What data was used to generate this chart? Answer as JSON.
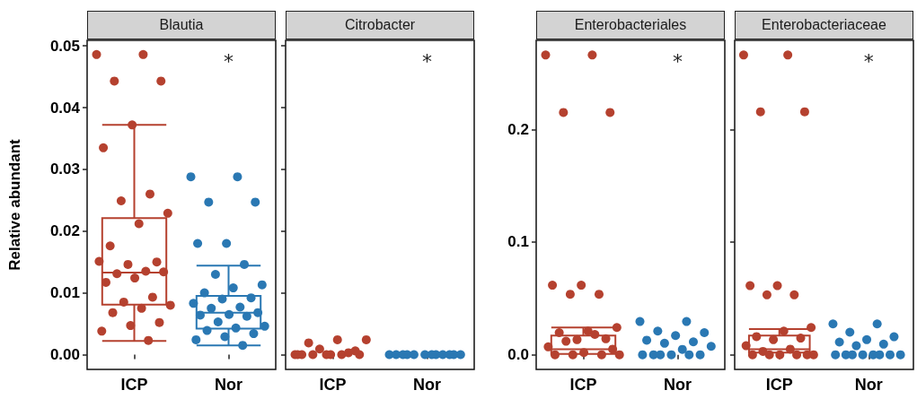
{
  "chart_data": [
    {
      "type": "box",
      "title": "Blautia",
      "ylabel": "Relative abundant",
      "categories": [
        "ICP",
        "Nor"
      ],
      "ylim": [
        -0.0024,
        0.0509
      ],
      "yticks": [
        {
          "value": 0,
          "label": "0.00"
        },
        0.01,
        0.02,
        0.03,
        0.04,
        0.05
      ],
      "grid": false,
      "marker": "circle",
      "annotations": [
        "*"
      ],
      "series": [
        {
          "type": "box",
          "colors": [
            "#b5412f",
            "#2a78b3"
          ],
          "boxes": [
            {
              "low": 0.0022,
              "q1": 0.0081,
              "median": 0.0133,
              "q3": 0.0221,
              "high": 0.0372
            },
            {
              "low": 0.0015,
              "q1": 0.0042,
              "median": 0.0068,
              "q3": 0.0095,
              "high": 0.0144
            }
          ]
        },
        {
          "type": "scatter",
          "color": "#b5412f",
          "x": [
            "ICP",
            "ICP",
            "ICP",
            "ICP",
            "ICP",
            "ICP",
            "ICP",
            "ICP",
            "ICP",
            "ICP",
            "ICP",
            "ICP",
            "ICP",
            "ICP",
            "ICP",
            "ICP",
            "ICP",
            "ICP",
            "ICP",
            "ICP",
            "ICP",
            "ICP",
            "ICP",
            "ICP",
            "ICP",
            "ICP",
            "ICP",
            "ICP"
          ],
          "values": [
            0.0486,
            0.0486,
            0.0443,
            0.0443,
            0.0372,
            0.0335,
            0.026,
            0.0249,
            0.0229,
            0.0212,
            0.0176,
            0.015,
            0.0146,
            0.0151,
            0.0135,
            0.0131,
            0.0134,
            0.0124,
            0.0117,
            0.0093,
            0.0085,
            0.008,
            0.0075,
            0.0068,
            0.0052,
            0.0047,
            0.0038,
            0.0023
          ]
        },
        {
          "type": "scatter",
          "color": "#2a78b3",
          "x": [
            "Nor",
            "Nor",
            "Nor",
            "Nor",
            "Nor",
            "Nor",
            "Nor",
            "Nor",
            "Nor",
            "Nor",
            "Nor",
            "Nor",
            "Nor",
            "Nor",
            "Nor",
            "Nor",
            "Nor",
            "Nor",
            "Nor",
            "Nor",
            "Nor",
            "Nor",
            "Nor",
            "Nor",
            "Nor",
            "Nor",
            "Nor",
            "Nor"
          ],
          "values": [
            0.0288,
            0.0288,
            0.0247,
            0.0247,
            0.018,
            0.018,
            0.0146,
            0.013,
            0.0113,
            0.0108,
            0.01,
            0.0092,
            0.009,
            0.0083,
            0.0077,
            0.0075,
            0.0068,
            0.0065,
            0.0064,
            0.0062,
            0.0053,
            0.0046,
            0.0043,
            0.0039,
            0.0034,
            0.0029,
            0.0024,
            0.0015
          ]
        }
      ]
    },
    {
      "type": "box",
      "title": "Citrobacter",
      "categories": [
        "ICP",
        "Nor"
      ],
      "ylim": [
        -0.0024,
        0.0509
      ],
      "yticks": [
        0,
        0.01,
        0.02,
        0.03,
        0.04,
        0.05
      ],
      "tick_labels": "x",
      "grid": false,
      "marker": "circle",
      "annotations": [
        "*"
      ],
      "series": [
        {
          "type": "scatter",
          "color": "#b5412f",
          "x": [
            "ICP",
            "ICP",
            "ICP",
            "ICP",
            "ICP",
            "ICP",
            "ICP",
            "ICP",
            "ICP",
            "ICP",
            "ICP",
            "ICP",
            "ICP",
            "ICP"
          ],
          "values": [
            0,
            0,
            0,
            0,
            0,
            0,
            0.0003,
            0.0009,
            0.0024,
            0.0024,
            0.0019,
            0.0006,
            0,
            0
          ]
        },
        {
          "type": "scatter",
          "color": "#2a78b3",
          "x": [
            "Nor",
            "Nor",
            "Nor",
            "Nor",
            "Nor",
            "Nor",
            "Nor",
            "Nor",
            "Nor",
            "Nor",
            "Nor",
            "Nor"
          ],
          "values": [
            0,
            0,
            0,
            0,
            0,
            0,
            0,
            0,
            0,
            0,
            0,
            0
          ]
        }
      ]
    },
    {
      "type": "box",
      "title": "Enterobacteriales",
      "categories": [
        "ICP",
        "Nor"
      ],
      "ylim": [
        -0.013,
        0.279
      ],
      "yticks": [
        {
          "value": 0,
          "label": "0.0"
        },
        0.1,
        0.2
      ],
      "grid": false,
      "marker": "circle",
      "annotations": [
        "*"
      ],
      "series": [
        {
          "type": "box",
          "color": "#b5412f",
          "boxes": [
            {
              "low": 0.0008,
              "q1": 0.0008,
              "median": 0.005,
              "q3": 0.017,
              "high": 0.0242
            },
            null
          ]
        },
        {
          "type": "scatter",
          "color": "#b5412f",
          "x": [
            "ICP",
            "ICP",
            "ICP",
            "ICP",
            "ICP",
            "ICP",
            "ICP",
            "ICP",
            "ICP",
            "ICP",
            "ICP",
            "ICP",
            "ICP",
            "ICP",
            "ICP",
            "ICP",
            "ICP",
            "ICP",
            "ICP",
            "ICP",
            "ICP",
            "ICP"
          ],
          "values": [
            0.266,
            0.266,
            0.215,
            0.215,
            0.0617,
            0.0617,
            0.0537,
            0.0537,
            0.0242,
            0.021,
            0.0196,
            0.0142,
            0.0134,
            0.007,
            0.018,
            0.012,
            0.005,
            0.002,
            0,
            0,
            0,
            0
          ]
        },
        {
          "type": "scatter",
          "color": "#2a78b3",
          "x": [
            "Nor",
            "Nor",
            "Nor",
            "Nor",
            "Nor",
            "Nor",
            "Nor",
            "Nor",
            "Nor",
            "Nor",
            "Nor",
            "Nor",
            "Nor",
            "Nor",
            "Nor",
            "Nor"
          ],
          "values": [
            0.0295,
            0.0295,
            0.021,
            0.0196,
            0.017,
            0.0129,
            0.0115,
            0.0102,
            0.0075,
            0.0048,
            0,
            0,
            0,
            0,
            0,
            0
          ]
        }
      ]
    },
    {
      "type": "box",
      "title": "Enterobacteriaceae",
      "categories": [
        "ICP",
        "Nor"
      ],
      "ylim": [
        -0.013,
        0.279
      ],
      "yticks": [
        0,
        0.1,
        0.2
      ],
      "tick_labels": "x",
      "grid": false,
      "marker": "circle",
      "annotations": [
        "*"
      ],
      "series": [
        {
          "type": "box",
          "color": "#b5412f",
          "boxes": [
            {
              "low": 0.002,
              "q1": 0.002,
              "median": 0.005,
              "q3": 0.017,
              "high": 0.0228
            },
            null
          ]
        },
        {
          "type": "scatter",
          "color": "#b5412f",
          "x": [
            "ICP",
            "ICP",
            "ICP",
            "ICP",
            "ICP",
            "ICP",
            "ICP",
            "ICP",
            "ICP",
            "ICP",
            "ICP",
            "ICP",
            "ICP",
            "ICP",
            "ICP",
            "ICP",
            "ICP",
            "ICP",
            "ICP",
            "ICP",
            "ICP",
            "ICP"
          ],
          "values": [
            0.266,
            0.266,
            0.2156,
            0.2156,
            0.0613,
            0.0613,
            0.0532,
            0.0532,
            0.0242,
            0.021,
            0.0161,
            0.0148,
            0.0134,
            0.008,
            0.005,
            0.003,
            0,
            0,
            0,
            0,
            0,
            0
          ]
        },
        {
          "type": "scatter",
          "color": "#2a78b3",
          "x": [
            "Nor",
            "Nor",
            "Nor",
            "Nor",
            "Nor",
            "Nor",
            "Nor",
            "Nor",
            "Nor",
            "Nor",
            "Nor",
            "Nor",
            "Nor",
            "Nor",
            "Nor",
            "Nor"
          ],
          "values": [
            0.0274,
            0.0274,
            0.02,
            0.016,
            0.0134,
            0.0113,
            0.0094,
            0.008,
            0,
            0,
            0,
            0,
            0,
            0,
            0,
            0
          ]
        }
      ]
    }
  ]
}
